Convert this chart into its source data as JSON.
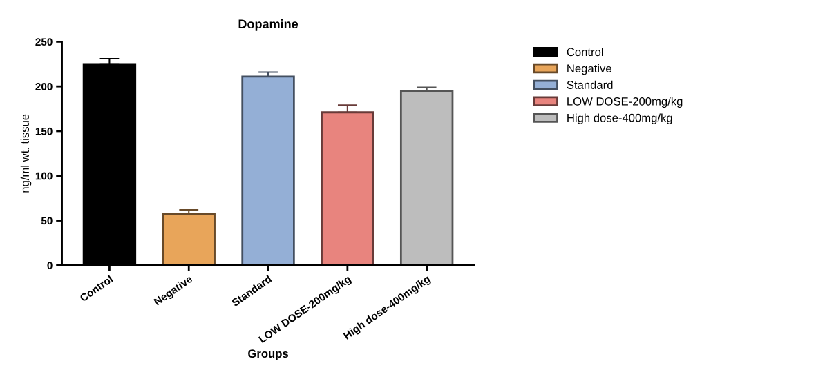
{
  "chart_data": {
    "type": "bar",
    "title": "Dopamine",
    "xlabel": "Groups",
    "ylabel": "ng/ml wt. tissue",
    "categories": [
      "Control",
      "Negative",
      "Standard",
      "LOW DOSE-200mg/kg",
      "High dose-400mg/kg"
    ],
    "series": [
      {
        "name": "Control",
        "color": "#000000",
        "values": [
          225,
          null,
          null,
          null,
          null
        ],
        "errors": [
          6,
          null,
          null,
          null,
          null
        ]
      },
      {
        "name": "Negative",
        "color": "#e8a55a",
        "values": [
          null,
          57,
          null,
          null,
          null
        ],
        "errors": [
          null,
          5,
          null,
          null,
          null
        ]
      },
      {
        "name": "Standard",
        "color": "#94afd6",
        "values": [
          null,
          null,
          211,
          null,
          null
        ],
        "errors": [
          null,
          null,
          5,
          null,
          null
        ]
      },
      {
        "name": "LOW DOSE-200mg/kg",
        "color": "#e8847e",
        "values": [
          null,
          null,
          null,
          171,
          null
        ],
        "errors": [
          null,
          null,
          null,
          8,
          null
        ]
      },
      {
        "name": "High dose-400mg/kg",
        "color": "#bdbdbd",
        "values": [
          null,
          null,
          null,
          null,
          195
        ],
        "errors": [
          null,
          null,
          null,
          null,
          4
        ]
      }
    ],
    "ylim": [
      0,
      250
    ],
    "yticks": [
      0,
      50,
      100,
      150,
      200,
      250
    ],
    "grid": false,
    "legend": "right"
  }
}
